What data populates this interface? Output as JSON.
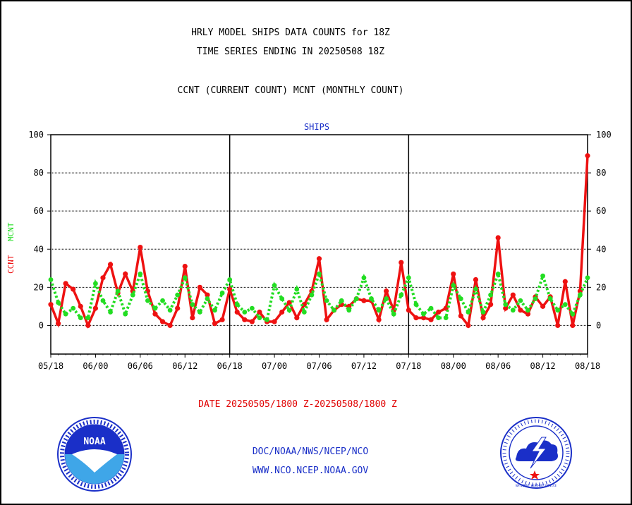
{
  "header": {
    "title_line1": "HRLY MODEL SHIPS DATA COUNTS for 18Z",
    "title_line2": "TIME SERIES ENDING IN 20250508 18Z",
    "subtitle": "CCNT (CURRENT COUNT) MCNT (MONTHLY COUNT)"
  },
  "footer": {
    "date_range": "DATE 20250505/1800 Z-20250508/1800 Z",
    "org_line": "DOC/NOAA/NWS/NCEP/NCO",
    "url_line": "WWW.NCO.NCEP.NOAA.GOV"
  },
  "logos": {
    "noaa_text": "NOAA",
    "nws_text": "NATIONAL WEATHER SERVICE"
  },
  "colors": {
    "ccnt": "#ee1111",
    "mcnt": "#22dd22",
    "panel_title": "#1a2fc8",
    "date_label": "#e00000"
  },
  "chart_data": {
    "type": "line",
    "panel_title": "SHIPS",
    "ylabel_left_ccnt": "CCNT",
    "ylabel_left_mcnt": "MCNT",
    "ylim": [
      -15,
      100
    ],
    "yticks": [
      0,
      20,
      40,
      60,
      80,
      100
    ],
    "ytick_labels": [
      "0",
      "20",
      "40",
      "60",
      "80",
      "100"
    ],
    "xticks": [
      0,
      6,
      12,
      18,
      24,
      30,
      36,
      42,
      48,
      54,
      60,
      66,
      72
    ],
    "xtick_labels": [
      "05/18",
      "06/00",
      "06/06",
      "06/12",
      "06/18",
      "07/00",
      "07/06",
      "07/12",
      "07/18",
      "08/00",
      "08/06",
      "08/12",
      "08/18"
    ],
    "day_dividers": [
      24,
      48
    ],
    "grid": true,
    "series": [
      {
        "name": "CCNT",
        "style": "solid",
        "x": [
          0,
          1,
          2,
          3,
          4,
          5,
          6,
          7,
          8,
          9,
          10,
          11,
          12,
          13,
          14,
          15,
          16,
          17,
          18,
          19,
          20,
          21,
          22,
          23,
          24,
          25,
          26,
          27,
          28,
          29,
          30,
          31,
          32,
          33,
          34,
          35,
          36,
          37,
          38,
          39,
          40,
          41,
          42,
          43,
          44,
          45,
          46,
          47,
          48,
          49,
          50,
          51,
          52,
          53,
          54,
          55,
          56,
          57,
          58,
          59,
          60,
          61,
          62,
          63,
          64,
          65,
          66,
          67,
          68,
          69,
          70,
          71,
          72
        ],
        "values": [
          11,
          1,
          22,
          19,
          10,
          0,
          9,
          25,
          32,
          17,
          27,
          18,
          41,
          18,
          6,
          2,
          0,
          9,
          31,
          4,
          20,
          16,
          1,
          3,
          19,
          7,
          3,
          2,
          7,
          2,
          2,
          7,
          12,
          4,
          11,
          18,
          35,
          3,
          8,
          11,
          10,
          14,
          13,
          13,
          3,
          18,
          8,
          33,
          8,
          4,
          4,
          3,
          7,
          9,
          27,
          5,
          0,
          24,
          4,
          11,
          46,
          9,
          16,
          8,
          6,
          15,
          10,
          15,
          0,
          23,
          0,
          18,
          89
        ]
      },
      {
        "name": "MCNT",
        "style": "dotted",
        "x": [
          0,
          1,
          2,
          3,
          4,
          5,
          6,
          7,
          8,
          9,
          10,
          11,
          12,
          13,
          14,
          15,
          16,
          17,
          18,
          19,
          20,
          21,
          22,
          23,
          24,
          25,
          26,
          27,
          28,
          29,
          30,
          31,
          32,
          33,
          34,
          35,
          36,
          37,
          38,
          39,
          40,
          41,
          42,
          43,
          44,
          45,
          46,
          47,
          48,
          49,
          50,
          51,
          52,
          53,
          54,
          55,
          56,
          57,
          58,
          59,
          60,
          61,
          62,
          63,
          64,
          65,
          66,
          67,
          68,
          69,
          70,
          71,
          72
        ],
        "values": [
          24,
          12,
          6,
          9,
          4,
          4,
          22,
          13,
          7,
          18,
          6,
          16,
          27,
          13,
          9,
          13,
          8,
          16,
          25,
          11,
          7,
          14,
          8,
          17,
          24,
          11,
          7,
          9,
          4,
          3,
          21,
          14,
          8,
          19,
          7,
          16,
          27,
          13,
          8,
          13,
          8,
          14,
          25,
          14,
          8,
          14,
          6,
          16,
          25,
          11,
          6,
          9,
          4,
          4,
          21,
          14,
          7,
          19,
          7,
          16,
          27,
          11,
          8,
          13,
          8,
          14,
          26,
          14,
          8,
          11,
          6,
          16,
          25
        ]
      }
    ]
  }
}
